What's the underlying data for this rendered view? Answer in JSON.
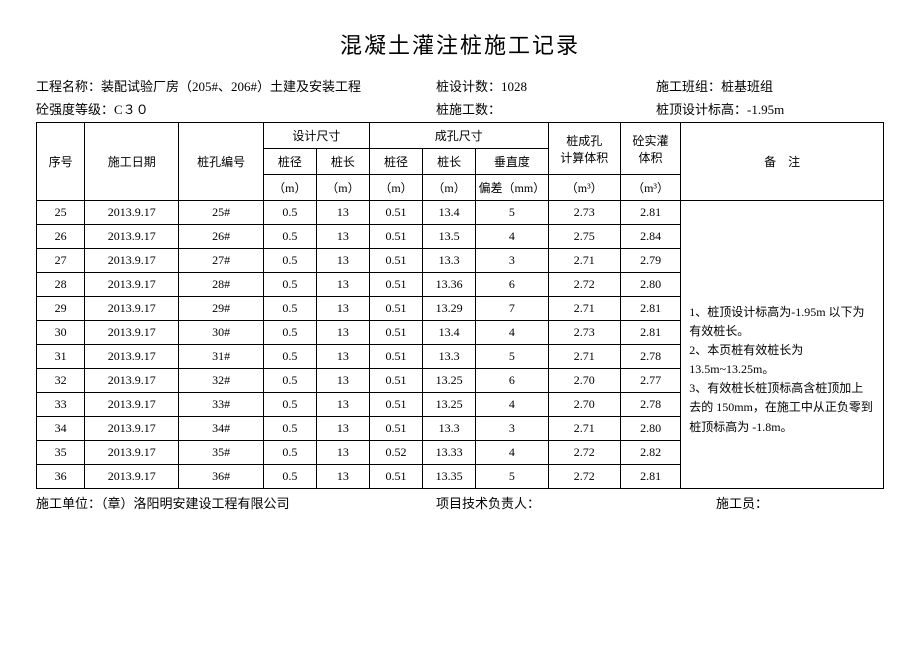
{
  "title": "混凝土灌注桩施工记录",
  "header": {
    "proj_label": "工程名称：",
    "proj_name": "装配试验厂房（205#、206#）土建及安装工程",
    "design_count_label": "桩设计数：",
    "design_count": "1028",
    "crew_label": "施工班组：",
    "crew": "桩基班组",
    "grade_label": "砼强度等级：",
    "grade": "C３０",
    "work_count_label": "桩施工数：",
    "work_count": "",
    "top_elev_label": "桩顶设计标高：",
    "top_elev": "-1.95m"
  },
  "columns": {
    "seq": "序号",
    "date": "施工日期",
    "hole": "桩孔编号",
    "design_dim": "设计尺寸",
    "actual_dim": "成孔尺寸",
    "dd": "桩径",
    "dl": "桩长",
    "ad": "桩径",
    "al": "桩长",
    "dev": "垂直度",
    "dev2": "偏差（mm）",
    "m": "（m）",
    "vol_hole": "桩成孔",
    "vol_hole2": "计算体积",
    "vol_conc": "砼实灌",
    "vol_conc2": "体积",
    "m3": "（m³）",
    "note": "备　注"
  },
  "rows": [
    {
      "seq": "25",
      "date": "2013.9.17",
      "hole": "25#",
      "dd": "0.5",
      "dl": "13",
      "ad": "0.51",
      "al": "13.4",
      "dev": "5",
      "vh": "2.73",
      "vc": "2.81"
    },
    {
      "seq": "26",
      "date": "2013.9.17",
      "hole": "26#",
      "dd": "0.5",
      "dl": "13",
      "ad": "0.51",
      "al": "13.5",
      "dev": "4",
      "vh": "2.75",
      "vc": "2.84"
    },
    {
      "seq": "27",
      "date": "2013.9.17",
      "hole": "27#",
      "dd": "0.5",
      "dl": "13",
      "ad": "0.51",
      "al": "13.3",
      "dev": "3",
      "vh": "2.71",
      "vc": "2.79"
    },
    {
      "seq": "28",
      "date": "2013.9.17",
      "hole": "28#",
      "dd": "0.5",
      "dl": "13",
      "ad": "0.51",
      "al": "13.36",
      "dev": "6",
      "vh": "2.72",
      "vc": "2.80"
    },
    {
      "seq": "29",
      "date": "2013.9.17",
      "hole": "29#",
      "dd": "0.5",
      "dl": "13",
      "ad": "0.51",
      "al": "13.29",
      "dev": "7",
      "vh": "2.71",
      "vc": "2.81"
    },
    {
      "seq": "30",
      "date": "2013.9.17",
      "hole": "30#",
      "dd": "0.5",
      "dl": "13",
      "ad": "0.51",
      "al": "13.4",
      "dev": "4",
      "vh": "2.73",
      "vc": "2.81"
    },
    {
      "seq": "31",
      "date": "2013.9.17",
      "hole": "31#",
      "dd": "0.5",
      "dl": "13",
      "ad": "0.51",
      "al": "13.3",
      "dev": "5",
      "vh": "2.71",
      "vc": "2.78"
    },
    {
      "seq": "32",
      "date": "2013.9.17",
      "hole": "32#",
      "dd": "0.5",
      "dl": "13",
      "ad": "0.51",
      "al": "13.25",
      "dev": "6",
      "vh": "2.70",
      "vc": "2.77"
    },
    {
      "seq": "33",
      "date": "2013.9.17",
      "hole": "33#",
      "dd": "0.5",
      "dl": "13",
      "ad": "0.51",
      "al": "13.25",
      "dev": "4",
      "vh": "2.70",
      "vc": "2.78"
    },
    {
      "seq": "34",
      "date": "2013.9.17",
      "hole": "34#",
      "dd": "0.5",
      "dl": "13",
      "ad": "0.51",
      "al": "13.3",
      "dev": "3",
      "vh": "2.71",
      "vc": "2.80"
    },
    {
      "seq": "35",
      "date": "2013.9.17",
      "hole": "35#",
      "dd": "0.5",
      "dl": "13",
      "ad": "0.52",
      "al": "13.33",
      "dev": "4",
      "vh": "2.72",
      "vc": "2.82"
    },
    {
      "seq": "36",
      "date": "2013.9.17",
      "hole": "36#",
      "dd": "0.5",
      "dl": "13",
      "ad": "0.51",
      "al": "13.35",
      "dev": "5",
      "vh": "2.72",
      "vc": "2.81"
    }
  ],
  "note_text": "1、桩顶设计标高为-1.95m 以下为有效桩长。\n2、本页桩有效桩长为 13.5m~13.25m。\n3、有效桩长桩顶标高含桩顶加上去的 150mm，在施工中从正负零到桩顶标高为 -1.8m。",
  "footer": {
    "unit_label": "施工单位：（章）",
    "unit": "洛阳明安建设工程有限公司",
    "tech_label": "项目技术负责人：",
    "worker_label": "施工员："
  }
}
